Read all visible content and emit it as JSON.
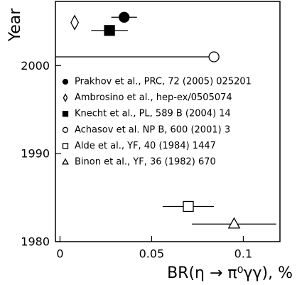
{
  "chart_data": {
    "type": "scatter",
    "xlabel": "BR(η → π⁰γγ), %",
    "ylabel": "Year",
    "xlim": [
      -0.0025,
      0.12
    ],
    "ylim": [
      1980,
      2007.3
    ],
    "xticks": [
      0,
      0.05,
      0.1
    ],
    "yticks": [
      1980,
      1990,
      2000
    ],
    "color": "#000000",
    "series": [
      {
        "name": "Prakhov et al., PRC, 72 (2005) 025201",
        "marker": "filled-circle",
        "x": [
          0.035
        ],
        "values": [
          2005.5
        ],
        "xerr_minus": [
          0.007
        ],
        "xerr_plus": [
          0.007
        ]
      },
      {
        "name": "Ambrosino et al., hep-ex/0505074",
        "marker": "open-diamond",
        "x": [
          0.008
        ],
        "values": [
          2004.9
        ],
        "xerr_minus": [
          0
        ],
        "xerr_plus": [
          0
        ]
      },
      {
        "name": "Knecht et al., PL, 589 B (2004) 14",
        "marker": "filled-square",
        "x": [
          0.027
        ],
        "values": [
          2004
        ],
        "xerr_minus": [
          0.01
        ],
        "xerr_plus": [
          0.01
        ]
      },
      {
        "name": "Achasov et al. NP B, 600 (2001) 3",
        "marker": "open-circle",
        "x": [
          0.084
        ],
        "values": [
          2001
        ],
        "xerr_minus": [
          0.09
        ],
        "xerr_plus": [
          0
        ]
      },
      {
        "name": "Alde et al., YF, 40 (1984) 1447",
        "marker": "open-square",
        "x": [
          0.07
        ],
        "values": [
          1984
        ],
        "xerr_minus": [
          0.014
        ],
        "xerr_plus": [
          0.014
        ]
      },
      {
        "name": "Binon et al., YF, 36 (1982) 670",
        "marker": "open-triangle",
        "x": [
          0.095
        ],
        "values": [
          1982
        ],
        "xerr_minus": [
          0.023
        ],
        "xerr_plus": [
          0.023
        ]
      }
    ]
  }
}
